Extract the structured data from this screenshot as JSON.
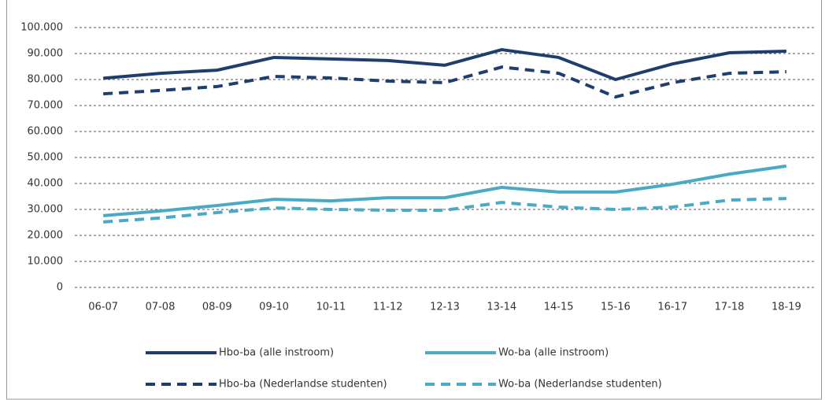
{
  "chart_data": {
    "type": "line",
    "categories": [
      "06-07",
      "07-08",
      "08-09",
      "09-10",
      "10-11",
      "11-12",
      "12-13",
      "13-14",
      "14-15",
      "15-16",
      "16-17",
      "17-18",
      "18-19"
    ],
    "series": [
      {
        "name": "Hbo-ba (alle instroom)",
        "color": "#1f3e6d",
        "dashed": false,
        "values": [
          80500,
          82400,
          83600,
          88500,
          87900,
          87300,
          85500,
          91500,
          88500,
          80000,
          86000,
          90300,
          90900
        ]
      },
      {
        "name": "Wo-ba (alle instroom)",
        "color": "#4aaac5",
        "dashed": false,
        "values": [
          27600,
          29400,
          31500,
          33900,
          33300,
          34500,
          34500,
          38500,
          36700,
          36700,
          39700,
          43600,
          46700
        ]
      },
      {
        "name": "Hbo-ba (Nederlandse studenten)",
        "color": "#1f3e6d",
        "dashed": true,
        "values": [
          74500,
          75800,
          77300,
          81200,
          80600,
          79400,
          78800,
          84800,
          82400,
          73300,
          78800,
          82400,
          83000
        ]
      },
      {
        "name": "Wo-ba (Nederlandse studenten)",
        "color": "#4aaac5",
        "dashed": true,
        "values": [
          25200,
          26700,
          28800,
          30600,
          30000,
          29700,
          29700,
          32700,
          30900,
          30000,
          30900,
          33600,
          34200
        ]
      }
    ],
    "ylim": [
      0,
      100000
    ],
    "yticks": [
      0,
      {
        "value": 10000,
        "label": "10.000"
      },
      {
        "value": 20000,
        "label": "20.000"
      },
      {
        "value": 30000,
        "label": "30.000"
      },
      {
        "value": 40000,
        "label": "40.000"
      },
      {
        "value": 50000,
        "label": "50.000"
      },
      {
        "value": 60000,
        "label": "60.000"
      },
      {
        "value": 70000,
        "label": "70.000"
      },
      {
        "value": 80000,
        "label": "80.000"
      },
      {
        "value": 90000,
        "label": "90.000"
      },
      {
        "value": 100000,
        "label": "100.000"
      }
    ],
    "grid": true,
    "legend": "bottom"
  }
}
